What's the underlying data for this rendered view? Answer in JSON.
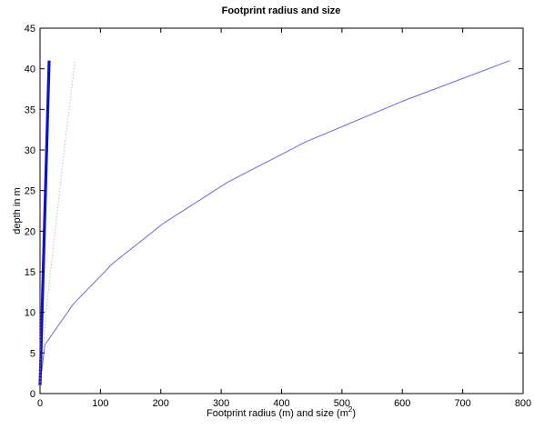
{
  "chart_data": {
    "type": "line",
    "title": "Footprint radius and size",
    "xlabel": "Footprint radius (m) and size (m",
    "xlabel_sup": "2",
    "xlabel_suffix": ")",
    "ylabel": "depth in m",
    "xlim": [
      0,
      800
    ],
    "ylim": [
      0,
      45
    ],
    "xticks": [
      0,
      100,
      200,
      300,
      400,
      500,
      600,
      700,
      800
    ],
    "yticks": [
      0,
      5,
      10,
      15,
      20,
      25,
      30,
      35,
      40,
      45
    ],
    "grid": false,
    "legend": "none",
    "series": [
      {
        "color": "#6b6bd6",
        "style": "solid",
        "width": "thin",
        "x": [
          0,
          8,
          55,
          120,
          205,
          310,
          440,
          600,
          778
        ],
        "y": [
          1,
          6,
          11,
          16,
          21,
          26,
          31,
          36,
          41
        ]
      },
      {
        "color": "#b8bcd8",
        "style": "dotted",
        "width": "thin",
        "x": [
          0,
          10,
          25,
          40,
          58
        ],
        "y": [
          1,
          10,
          20,
          30,
          41
        ]
      },
      {
        "color": "#0a14c8",
        "style": "solid",
        "width": "thick",
        "x": [
          0,
          3,
          6,
          9,
          12,
          15
        ],
        "y": [
          1,
          9,
          17,
          25,
          33,
          41
        ]
      },
      {
        "color": "#c0504d",
        "style": "dotted",
        "width": "medium",
        "x": [
          0,
          0,
          0,
          0,
          0,
          0
        ],
        "y": [
          1,
          9,
          17,
          25,
          33,
          41
        ]
      }
    ]
  }
}
